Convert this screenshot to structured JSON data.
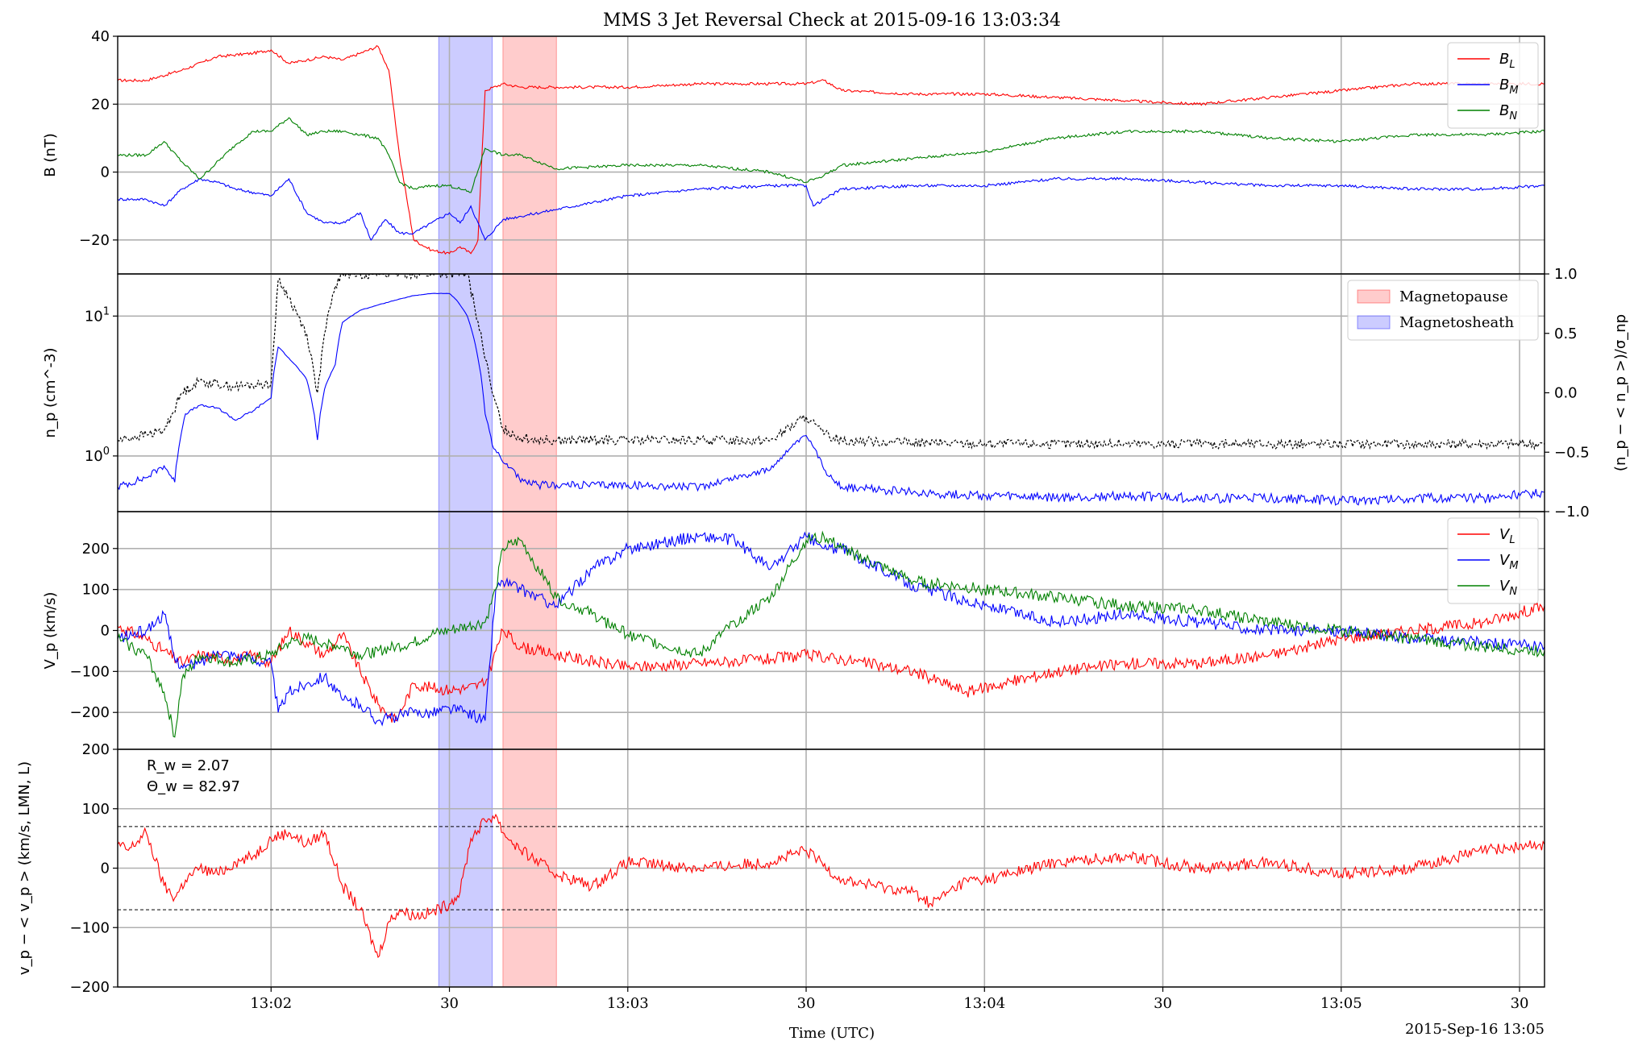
{
  "chart_data": {
    "title": "MMS 3 Jet Reversal Check at 2015-09-16 13:03:34",
    "xlabel": "Time (UTC)",
    "x_end_label": "2015-Sep-16 13:05",
    "x_ticks": [
      "13:02",
      "30",
      "13:03",
      "30",
      "13:04",
      "30",
      "13:05",
      "30"
    ],
    "x_tick_minutes": [
      1,
      1.5,
      2,
      2.5,
      3,
      3.5,
      4,
      4.5
    ],
    "xlim_minutes": [
      0.57,
      4.57
    ],
    "spans": [
      {
        "name": "Magnetosheath",
        "color": "#0000ff",
        "x0": 1.47,
        "x1": 1.62
      },
      {
        "name": "Magnetopause",
        "color": "#ff0000",
        "x0": 1.65,
        "x1": 1.8
      }
    ],
    "panels": [
      {
        "id": "B",
        "type": "line",
        "ylabel": "B (nT)",
        "ylim": [
          -30,
          40
        ],
        "yticks": [
          -20,
          0,
          20,
          40
        ],
        "ytick_labels": [
          "−20",
          "0",
          "20",
          "40"
        ],
        "legend": [
          {
            "label": "B",
            "sub": "L",
            "color": "#ff0000"
          },
          {
            "label": "B",
            "sub": "M",
            "color": "#0000ff"
          },
          {
            "label": "B",
            "sub": "N",
            "color": "#008000"
          }
        ],
        "series": [
          {
            "name": "BL",
            "color": "#ff0000",
            "x": [
              0.57,
              0.65,
              0.75,
              0.85,
              0.95,
              1.0,
              1.05,
              1.1,
              1.15,
              1.2,
              1.25,
              1.3,
              1.33,
              1.36,
              1.4,
              1.45,
              1.5,
              1.53,
              1.56,
              1.58,
              1.6,
              1.65,
              1.7,
              1.8,
              1.9,
              2.0,
              2.2,
              2.4,
              2.5,
              2.55,
              2.6,
              2.8,
              3.0,
              3.2,
              3.4,
              3.6,
              3.8,
              4.0,
              4.2,
              4.4,
              4.57
            ],
            "y": [
              27,
              27,
              30,
              34,
              35,
              36,
              32,
              33,
              34,
              33,
              35,
              37,
              30,
              5,
              -20,
              -23,
              -24,
              -22,
              -24,
              -20,
              24,
              26,
              25,
              25,
              25,
              25,
              26,
              26,
              26,
              27,
              24,
              23,
              23,
              22,
              21,
              20,
              22,
              24,
              26,
              26,
              26
            ]
          },
          {
            "name": "BM",
            "color": "#0000ff",
            "x": [
              0.57,
              0.65,
              0.7,
              0.75,
              0.8,
              0.85,
              0.9,
              1.0,
              1.05,
              1.1,
              1.15,
              1.2,
              1.25,
              1.28,
              1.32,
              1.36,
              1.4,
              1.45,
              1.5,
              1.53,
              1.56,
              1.6,
              1.65,
              1.7,
              1.8,
              2.0,
              2.2,
              2.4,
              2.5,
              2.52,
              2.55,
              2.6,
              2.8,
              3.0,
              3.2,
              3.4,
              3.6,
              3.8,
              4.0,
              4.2,
              4.4,
              4.57
            ],
            "y": [
              -8,
              -8,
              -10,
              -5,
              -2,
              -3,
              -5,
              -7,
              -2,
              -12,
              -15,
              -15,
              -12,
              -20,
              -14,
              -18,
              -18,
              -15,
              -12,
              -15,
              -10,
              -20,
              -14,
              -13,
              -11,
              -7,
              -5,
              -4,
              -4,
              -10,
              -8,
              -5,
              -4,
              -4,
              -2,
              -2,
              -3,
              -4,
              -4,
              -5,
              -5,
              -4
            ]
          },
          {
            "name": "BN",
            "color": "#008000",
            "x": [
              0.57,
              0.65,
              0.7,
              0.75,
              0.8,
              0.9,
              0.95,
              1.0,
              1.05,
              1.1,
              1.15,
              1.2,
              1.25,
              1.3,
              1.33,
              1.36,
              1.4,
              1.45,
              1.5,
              1.53,
              1.56,
              1.6,
              1.65,
              1.7,
              1.8,
              2.0,
              2.2,
              2.4,
              2.5,
              2.55,
              2.6,
              2.8,
              3.0,
              3.2,
              3.4,
              3.6,
              3.8,
              4.0,
              4.2,
              4.4,
              4.57
            ],
            "y": [
              5,
              5,
              9,
              3,
              -2,
              8,
              12,
              12,
              16,
              11,
              12,
              12,
              11,
              10,
              5,
              -3,
              -5,
              -4,
              -4,
              -5,
              -6,
              7,
              5,
              5,
              1,
              2,
              2,
              0,
              -3,
              -1,
              2,
              4,
              6,
              10,
              12,
              12,
              10,
              9,
              11,
              11,
              12
            ]
          }
        ]
      },
      {
        "id": "np",
        "type": "line",
        "ylabel": "n_p (cm^-3)",
        "yscale": "log",
        "ylim": [
          0.4,
          20
        ],
        "yticks": [
          1,
          10
        ],
        "ytick_labels": [
          "10^0",
          "10^1"
        ],
        "right_ylabel": "(n_p − < n_p >)/σ_np",
        "right_ylim": [
          -1.0,
          1.0
        ],
        "right_yticks": [
          -1.0,
          -0.5,
          0.0,
          0.5,
          1.0
        ],
        "right_ytick_labels": [
          "−1.0",
          "−0.5",
          "0.0",
          "0.5",
          "1.0"
        ],
        "legend": [
          {
            "label": "Magnetopause",
            "color": "#ff0000"
          },
          {
            "label": "Magnetosheath",
            "color": "#0000ff"
          }
        ],
        "series": [
          {
            "name": "np",
            "color": "#0000ff",
            "x": [
              0.57,
              0.65,
              0.7,
              0.73,
              0.76,
              0.8,
              0.85,
              0.9,
              0.95,
              1.0,
              1.02,
              1.05,
              1.1,
              1.13,
              1.15,
              1.18,
              1.2,
              1.25,
              1.3,
              1.35,
              1.4,
              1.45,
              1.5,
              1.52,
              1.55,
              1.58,
              1.6,
              1.62,
              1.65,
              1.68,
              1.7,
              1.75,
              1.8,
              2.0,
              2.2,
              2.4,
              2.5,
              2.55,
              2.6,
              2.8,
              3.0,
              3.2,
              3.4,
              3.6,
              3.8,
              4.0,
              4.2,
              4.4,
              4.57
            ],
            "y": [
              0.6,
              0.7,
              0.85,
              0.65,
              2.0,
              2.3,
              2.2,
              1.8,
              2.1,
              2.6,
              6.0,
              5.0,
              3.5,
              1.3,
              3.0,
              4.5,
              9.0,
              11,
              12,
              13,
              14,
              14.5,
              14.5,
              13,
              10,
              5,
              2.0,
              1.2,
              0.9,
              0.8,
              0.65,
              0.62,
              0.62,
              0.62,
              0.6,
              0.8,
              1.4,
              0.8,
              0.6,
              0.55,
              0.52,
              0.5,
              0.52,
              0.5,
              0.5,
              0.48,
              0.5,
              0.5,
              0.55
            ]
          },
          {
            "name": "np_norm",
            "color": "#000000",
            "dashed": true,
            "axis": "right",
            "x": [
              0.57,
              0.65,
              0.7,
              0.75,
              0.8,
              0.9,
              1.0,
              1.02,
              1.05,
              1.1,
              1.13,
              1.15,
              1.18,
              1.2,
              1.25,
              1.3,
              1.4,
              1.5,
              1.55,
              1.58,
              1.62,
              1.65,
              1.7,
              1.8,
              2.0,
              2.2,
              2.4,
              2.5,
              2.55,
              2.6,
              2.8,
              3.0,
              3.2,
              3.4,
              3.6,
              3.8,
              4.0,
              4.2,
              4.4,
              4.57
            ],
            "y": [
              -0.4,
              -0.35,
              -0.32,
              0.0,
              0.1,
              0.05,
              0.08,
              0.95,
              0.8,
              0.5,
              0.0,
              0.5,
              0.9,
              1.0,
              1.0,
              1.0,
              1.0,
              1.0,
              1.0,
              0.6,
              0.0,
              -0.3,
              -0.38,
              -0.4,
              -0.4,
              -0.4,
              -0.4,
              -0.2,
              -0.35,
              -0.4,
              -0.42,
              -0.43,
              -0.43,
              -0.43,
              -0.43,
              -0.43,
              -0.43,
              -0.43,
              -0.43,
              -0.43
            ]
          }
        ]
      },
      {
        "id": "Vp",
        "type": "line",
        "ylabel": "V_p (km/s)",
        "ylim": [
          -290,
          290
        ],
        "yticks": [
          -200,
          -100,
          0,
          100,
          200
        ],
        "ytick_labels": [
          "−200",
          "−100",
          "0",
          "100",
          "200"
        ],
        "legend": [
          {
            "label": "V",
            "sub": "L",
            "color": "#ff0000"
          },
          {
            "label": "V",
            "sub": "M",
            "color": "#0000ff"
          },
          {
            "label": "V",
            "sub": "N",
            "color": "#008000"
          }
        ],
        "series": [
          {
            "name": "VL",
            "color": "#ff0000",
            "x": [
              0.57,
              0.65,
              0.7,
              0.75,
              0.8,
              0.9,
              0.95,
              1.0,
              1.05,
              1.1,
              1.15,
              1.2,
              1.25,
              1.3,
              1.35,
              1.4,
              1.45,
              1.5,
              1.55,
              1.6,
              1.63,
              1.65,
              1.7,
              1.8,
              2.0,
              2.2,
              2.4,
              2.5,
              2.6,
              2.8,
              2.95,
              3.2,
              3.4,
              3.6,
              3.8,
              4.0,
              4.2,
              4.4,
              4.57
            ],
            "y": [
              10,
              -20,
              -50,
              -80,
              -60,
              -70,
              -60,
              -80,
              0,
              -30,
              -60,
              -10,
              -100,
              -180,
              -220,
              -130,
              -140,
              -145,
              -140,
              -130,
              -50,
              0,
              -40,
              -60,
              -90,
              -80,
              -70,
              -60,
              -70,
              -100,
              -150,
              -100,
              -80,
              -80,
              -60,
              -20,
              0,
              20,
              60
            ]
          },
          {
            "name": "VM",
            "color": "#0000ff",
            "x": [
              0.57,
              0.65,
              0.7,
              0.73,
              0.76,
              0.8,
              0.85,
              0.9,
              1.0,
              1.02,
              1.05,
              1.1,
              1.15,
              1.2,
              1.25,
              1.3,
              1.35,
              1.4,
              1.45,
              1.5,
              1.55,
              1.6,
              1.63,
              1.65,
              1.7,
              1.8,
              1.9,
              2.0,
              2.2,
              2.3,
              2.4,
              2.5,
              2.55,
              2.6,
              2.8,
              3.0,
              3.2,
              3.4,
              3.6,
              3.8,
              4.0,
              4.2,
              4.4,
              4.57
            ],
            "y": [
              -20,
              0,
              40,
              -70,
              -90,
              -80,
              -50,
              -60,
              -80,
              -200,
              -150,
              -130,
              -110,
              -170,
              -180,
              -220,
              -210,
              -200,
              -200,
              -190,
              -200,
              -220,
              100,
              120,
              100,
              60,
              150,
              200,
              230,
              220,
              150,
              230,
              200,
              200,
              110,
              60,
              20,
              40,
              20,
              0,
              0,
              -20,
              -30,
              -40
            ]
          },
          {
            "name": "VN",
            "color": "#008000",
            "x": [
              0.57,
              0.65,
              0.7,
              0.73,
              0.75,
              0.8,
              0.9,
              1.0,
              1.05,
              1.1,
              1.15,
              1.2,
              1.25,
              1.3,
              1.35,
              1.4,
              1.45,
              1.5,
              1.55,
              1.6,
              1.63,
              1.65,
              1.7,
              1.8,
              1.9,
              2.0,
              2.2,
              2.3,
              2.4,
              2.5,
              2.55,
              2.6,
              2.8,
              3.0,
              3.2,
              3.4,
              3.6,
              3.8,
              4.0,
              4.2,
              4.4,
              4.57
            ],
            "y": [
              -20,
              -60,
              -150,
              -260,
              -120,
              -60,
              -80,
              -60,
              -30,
              -20,
              -30,
              -40,
              -60,
              -50,
              -40,
              -30,
              -10,
              0,
              10,
              20,
              100,
              200,
              220,
              80,
              40,
              -10,
              -60,
              20,
              80,
              220,
              230,
              200,
              120,
              100,
              80,
              60,
              50,
              20,
              0,
              -20,
              -40,
              -50
            ]
          }
        ]
      },
      {
        "id": "dv",
        "type": "line",
        "ylabel": "v_p − < v_p > (km/s, LMN, L)",
        "ylim": [
          -200,
          200
        ],
        "yticks": [
          -200,
          -100,
          0,
          100,
          200
        ],
        "ytick_labels": [
          "−200",
          "−100",
          "0",
          "100",
          "200"
        ],
        "annotations": [
          "R_w = 2.07",
          "Θ_w = 82.97"
        ],
        "ref_lines": [
          70,
          -70
        ],
        "series": [
          {
            "name": "dvL",
            "color": "#ff0000",
            "x": [
              0.57,
              0.6,
              0.65,
              0.7,
              0.73,
              0.76,
              0.8,
              0.85,
              0.9,
              0.95,
              1.0,
              1.05,
              1.1,
              1.15,
              1.2,
              1.25,
              1.3,
              1.33,
              1.36,
              1.4,
              1.45,
              1.5,
              1.53,
              1.56,
              1.6,
              1.63,
              1.65,
              1.7,
              1.8,
              1.9,
              2.0,
              2.2,
              2.4,
              2.5,
              2.6,
              2.8,
              2.85,
              2.95,
              3.0,
              3.2,
              3.4,
              3.6,
              3.8,
              4.0,
              4.2,
              4.4,
              4.57
            ],
            "y": [
              40,
              30,
              60,
              -30,
              -50,
              -20,
              0,
              -10,
              10,
              20,
              50,
              60,
              40,
              60,
              -30,
              -70,
              -150,
              -90,
              -70,
              -80,
              -75,
              -60,
              -40,
              50,
              80,
              90,
              60,
              30,
              -10,
              -30,
              10,
              0,
              10,
              30,
              -20,
              -40,
              -60,
              -20,
              -20,
              10,
              20,
              0,
              10,
              -10,
              0,
              30,
              40
            ]
          }
        ]
      }
    ]
  }
}
